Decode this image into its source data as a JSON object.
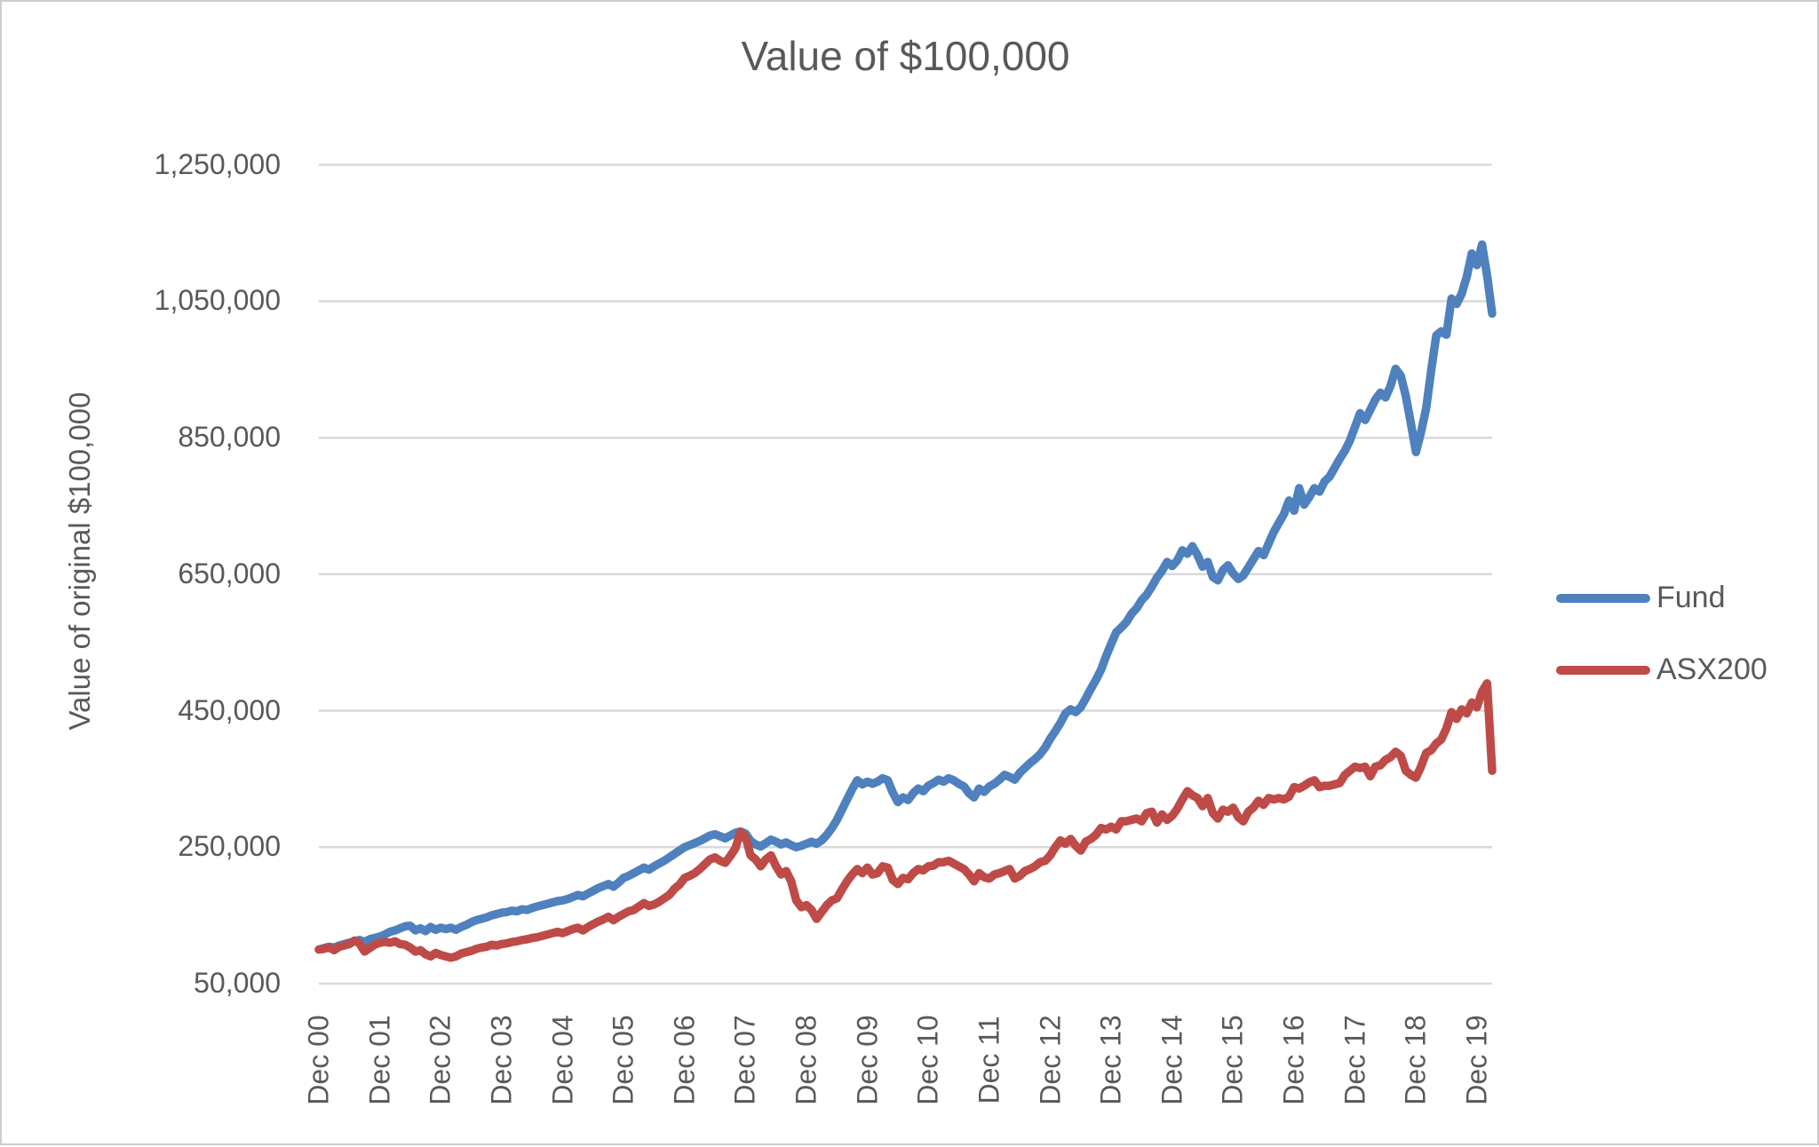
{
  "chart_data": {
    "type": "line",
    "title": "Value of $100,000",
    "ylabel": "Value of original $100,000",
    "value_units": "AUD (series values stored in thousands)",
    "x_unit": "months, Dec 2000 through Mar 2020",
    "grid": "horizontal-only",
    "legend_position": "right",
    "ylim_thousands": [
      50,
      1250
    ],
    "y_ticks": [
      {
        "value_thousands": 50,
        "label": "50,000"
      },
      {
        "value_thousands": 250,
        "label": "250,000"
      },
      {
        "value_thousands": 450,
        "label": "450,000"
      },
      {
        "value_thousands": 650,
        "label": "650,000"
      },
      {
        "value_thousands": 850,
        "label": "850,000"
      },
      {
        "value_thousands": 1050,
        "label": "1,050,000"
      },
      {
        "value_thousands": 1250,
        "label": "1,250,000"
      }
    ],
    "x_tick_labels": [
      "Dec 00",
      "Dec 01",
      "Dec 02",
      "Dec 03",
      "Dec 04",
      "Dec 05",
      "Dec 06",
      "Dec 07",
      "Dec 08",
      "Dec 09",
      "Dec 10",
      "Dec 11",
      "Dec 12",
      "Dec 13",
      "Dec 14",
      "Dec 15",
      "Dec 16",
      "Dec 17",
      "Dec 18",
      "Dec 19"
    ],
    "x_tick_every_n_months": 12,
    "series": [
      {
        "name": "Fund",
        "color": "#4E81BD",
        "values_thousands": [
          100,
          102,
          104,
          103,
          106,
          108,
          110,
          112,
          114,
          111,
          115,
          117,
          119,
          122,
          126,
          128,
          131,
          134,
          135,
          128,
          131,
          127,
          133,
          129,
          132,
          130,
          132,
          129,
          133,
          136,
          140,
          143,
          145,
          147,
          150,
          152,
          154,
          155,
          157,
          156,
          159,
          158,
          161,
          163,
          165,
          167,
          169,
          171,
          172,
          174,
          177,
          180,
          178,
          182,
          186,
          190,
          193,
          196,
          192,
          198,
          205,
          208,
          212,
          216,
          220,
          217,
          222,
          226,
          230,
          235,
          240,
          245,
          250,
          253,
          256,
          259,
          263,
          267,
          269,
          266,
          263,
          267,
          271,
          273,
          270,
          259,
          254,
          251,
          256,
          261,
          258,
          254,
          257,
          253,
          250,
          252,
          255,
          258,
          255,
          260,
          268,
          278,
          290,
          305,
          320,
          335,
          348,
          342,
          346,
          343,
          346,
          351,
          348,
          330,
          316,
          323,
          319,
          329,
          336,
          332,
          340,
          344,
          349,
          346,
          351,
          348,
          343,
          339,
          329,
          323,
          336,
          331,
          339,
          343,
          349,
          356,
          353,
          349,
          359,
          366,
          373,
          379,
          386,
          396,
          409,
          420,
          432,
          446,
          452,
          448,
          455,
          468,
          482,
          495,
          510,
          530,
          548,
          565,
          572,
          580,
          592,
          600,
          612,
          620,
          632,
          645,
          655,
          668,
          662,
          670,
          685,
          680,
          691,
          678,
          661,
          668,
          646,
          641,
          656,
          663,
          651,
          643,
          648,
          660,
          672,
          684,
          678,
          695,
          712,
          725,
          738,
          758,
          743,
          776,
          752,
          763,
          776,
          771,
          786,
          793,
          806,
          819,
          831,
          846,
          866,
          886,
          876,
          891,
          906,
          916,
          909,
          926,
          951,
          941,
          911,
          871,
          829,
          858,
          893,
          949,
          1000,
          1006,
          1001,
          1054,
          1046,
          1061,
          1086,
          1120,
          1103,
          1133,
          1088,
          1032
        ]
      },
      {
        "name": "ASX200",
        "color": "#BE4B48",
        "values_thousands": [
          100,
          101,
          103,
          99,
          104,
          106,
          108,
          113,
          109,
          97,
          102,
          107,
          110,
          111,
          110,
          112,
          108,
          107,
          103,
          97,
          99,
          93,
          90,
          95,
          92,
          90,
          88,
          90,
          94,
          96,
          98,
          101,
          103,
          104,
          107,
          106,
          108,
          109,
          111,
          112,
          114,
          115,
          117,
          118,
          120,
          122,
          124,
          126,
          124,
          127,
          130,
          132,
          128,
          133,
          137,
          141,
          144,
          148,
          143,
          148,
          152,
          156,
          158,
          163,
          168,
          164,
          166,
          170,
          175,
          180,
          189,
          195,
          205,
          208,
          212,
          218,
          225,
          232,
          235,
          230,
          227,
          237,
          248,
          272,
          265,
          238,
          232,
          222,
          232,
          238,
          222,
          210,
          215,
          200,
          172,
          162,
          165,
          158,
          145,
          155,
          165,
          172,
          175,
          188,
          200,
          210,
          218,
          212,
          220,
          210,
          212,
          222,
          220,
          202,
          196,
          205,
          203,
          212,
          218,
          216,
          222,
          223,
          228,
          228,
          230,
          226,
          222,
          218,
          210,
          200,
          212,
          206,
          204,
          210,
          212,
          215,
          218,
          204,
          208,
          215,
          218,
          222,
          228,
          230,
          238,
          250,
          260,
          255,
          262,
          252,
          245,
          258,
          262,
          268,
          278,
          276,
          280,
          276,
          288,
          288,
          290,
          292,
          288,
          300,
          302,
          286,
          298,
          290,
          296,
          306,
          320,
          332,
          326,
          322,
          310,
          322,
          300,
          292,
          305,
          302,
          308,
          294,
          288,
          302,
          308,
          318,
          312,
          322,
          320,
          322,
          320,
          324,
          338,
          336,
          340,
          345,
          348,
          338,
          340,
          340,
          342,
          344,
          356,
          362,
          368,
          366,
          368,
          354,
          368,
          370,
          378,
          382,
          390,
          384,
          362,
          356,
          352,
          368,
          388,
          392,
          402,
          408,
          424,
          448,
          438,
          452,
          446,
          462,
          455,
          478,
          490,
          362
        ]
      }
    ],
    "colors": {
      "gridline": "#D9D9D9",
      "text": "#595959",
      "background": "#FFFFFF",
      "frame_border": "#CCCCCC"
    }
  }
}
